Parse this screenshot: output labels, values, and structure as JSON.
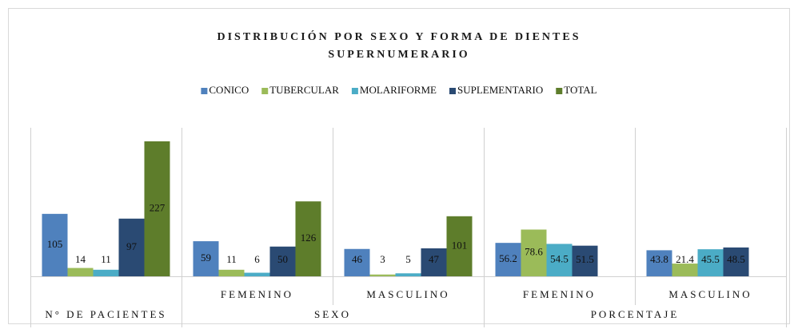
{
  "chart_data": {
    "type": "bar",
    "title": "DISTRIBUCIÓN POR SEXO Y FORMA DE DIENTES SUPERNUMERARIO",
    "category_groups": [
      {
        "label": "N° DE PACIENTES",
        "categories": [
          null
        ]
      },
      {
        "label": "SEXO",
        "categories": [
          "FEMENINO",
          "MASCULINO"
        ]
      },
      {
        "label": "PORCENTAJE",
        "categories": [
          "FEMENINO",
          "MASCULINO"
        ]
      }
    ],
    "series": [
      {
        "name": "CONICO",
        "color": "#4f81bd",
        "values": [
          105,
          59,
          46,
          56.2,
          43.8
        ]
      },
      {
        "name": "TUBERCULAR",
        "color": "#9bbb59",
        "values": [
          14,
          11,
          3,
          78.6,
          21.4
        ]
      },
      {
        "name": "MOLARIFORME",
        "color": "#4bacc6",
        "values": [
          11,
          6,
          5,
          54.5,
          45.5
        ]
      },
      {
        "name": "SUPLEMENTARIO",
        "color": "#2a4a73",
        "values": [
          97,
          50,
          47,
          51.5,
          48.5
        ]
      },
      {
        "name": "TOTAL",
        "color": "#5e7d2b",
        "values": [
          227,
          126,
          101,
          null,
          null
        ]
      }
    ],
    "legend": "top"
  }
}
